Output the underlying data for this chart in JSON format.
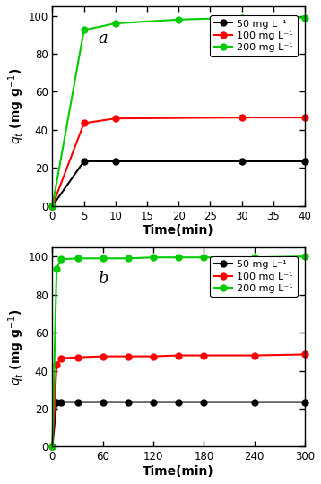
{
  "subplot_a": {
    "label": "a",
    "series": [
      {
        "label": "50 mg L⁻¹",
        "color": "#000000",
        "x": [
          0,
          5,
          10,
          30,
          40
        ],
        "y": [
          0,
          23.5,
          23.5,
          23.5,
          23.5
        ]
      },
      {
        "label": "100 mg L⁻¹",
        "color": "#ff0000",
        "x": [
          0,
          5,
          10,
          30,
          40
        ],
        "y": [
          0,
          43.5,
          46.0,
          46.5,
          46.5
        ]
      },
      {
        "label": "200 mg L⁻¹",
        "color": "#00cc00",
        "x": [
          0,
          5,
          10,
          20,
          30,
          40
        ],
        "y": [
          0,
          92.5,
          96.0,
          98.0,
          99.0,
          99.0
        ]
      }
    ],
    "xlim": [
      0,
      40
    ],
    "ylim": [
      0,
      105
    ],
    "xticks": [
      0,
      5,
      10,
      15,
      20,
      25,
      30,
      35,
      40
    ],
    "yticks": [
      0,
      20,
      40,
      60,
      80,
      100
    ],
    "xlabel": "Time(min)",
    "ylabel": "$q_t$ (mg g$^{-1}$)"
  },
  "subplot_b": {
    "label": "b",
    "series": [
      {
        "label": "50 mg L⁻¹",
        "color": "#000000",
        "x": [
          0,
          5,
          10,
          30,
          60,
          90,
          120,
          150,
          180,
          240,
          300
        ],
        "y": [
          0,
          23.5,
          23.5,
          23.5,
          23.5,
          23.5,
          23.5,
          23.5,
          23.5,
          23.5,
          23.5
        ]
      },
      {
        "label": "100 mg L⁻¹",
        "color": "#ff0000",
        "x": [
          0,
          5,
          10,
          30,
          60,
          90,
          120,
          150,
          180,
          240,
          300
        ],
        "y": [
          0,
          43.0,
          46.5,
          47.0,
          47.5,
          47.5,
          47.5,
          48.0,
          48.0,
          48.0,
          48.5
        ]
      },
      {
        "label": "200 mg L⁻¹",
        "color": "#00cc00",
        "x": [
          0,
          5,
          10,
          30,
          60,
          90,
          120,
          150,
          180,
          240,
          300
        ],
        "y": [
          0,
          93.5,
          98.5,
          99.0,
          99.0,
          99.0,
          99.5,
          99.5,
          99.5,
          99.5,
          100.0
        ]
      }
    ],
    "xlim": [
      0,
      300
    ],
    "ylim": [
      0,
      105
    ],
    "xticks": [
      0,
      60,
      120,
      180,
      240,
      300
    ],
    "yticks": [
      0,
      20,
      40,
      60,
      80,
      100
    ],
    "xlabel": "Time(min)",
    "ylabel": "$q_t$ (mg g$^{-1}$)"
  },
  "marker": "o",
  "markersize": 5,
  "linewidth": 1.5,
  "legend_fontsize": 8,
  "axis_label_fontsize": 10,
  "tick_fontsize": 8.5,
  "label_fontsize": 13,
  "figure_bgcolor": "#ffffff"
}
